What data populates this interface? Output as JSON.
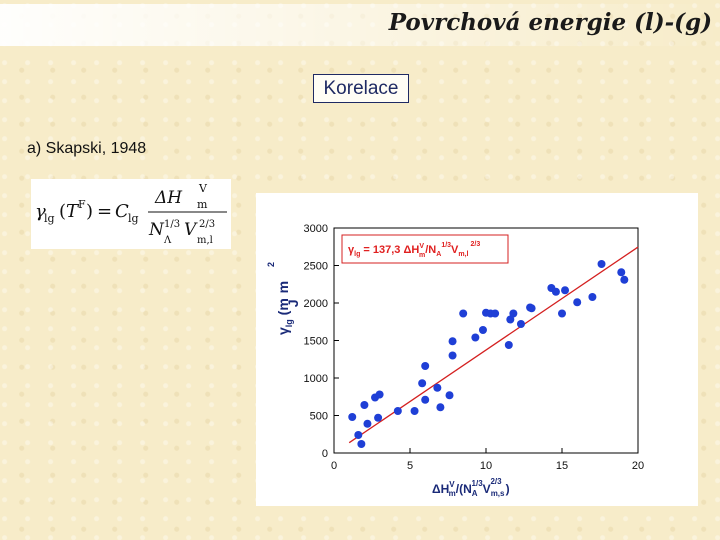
{
  "page": {
    "title": "Povrchová energie (l)-(g)",
    "section_label": "Korelace",
    "subheading": "a) Skapski, 1948"
  },
  "formula": {
    "lhs_symbol": "γ",
    "lhs_sub": "lg",
    "lhs_arg_T": "T",
    "lhs_arg_sup": "F",
    "equals": "=",
    "const": "C",
    "const_sub": "lg",
    "num_delta": "ΔH",
    "num_sub": "m",
    "num_sup": "V",
    "den_N": "N",
    "den_N_sup": "1/3",
    "den_N_sub": "Λ",
    "den_V": "V",
    "den_V_sup": "2/3",
    "den_V_sub": "m,l"
  },
  "chart_data": {
    "type": "scatter",
    "x": [
      1.2,
      1.6,
      1.8,
      2.0,
      2.2,
      2.7,
      2.9,
      3.0,
      4.2,
      5.3,
      5.8,
      6.0,
      6.0,
      6.8,
      7.0,
      7.6,
      7.8,
      7.8,
      8.5,
      9.3,
      9.8,
      10.0,
      10.3,
      10.6,
      11.5,
      11.6,
      11.8,
      12.3,
      12.9,
      13.0,
      14.3,
      14.6,
      15.0,
      15.2,
      16.0,
      17.0,
      17.6,
      18.9,
      19.1
    ],
    "y": [
      480,
      240,
      120,
      640,
      390,
      740,
      470,
      780,
      560,
      560,
      930,
      710,
      1160,
      870,
      610,
      770,
      1300,
      1490,
      1860,
      1540,
      1640,
      1870,
      1860,
      1860,
      1440,
      1780,
      1860,
      1720,
      1940,
      1930,
      2200,
      2150,
      1860,
      2170,
      2010,
      2080,
      2520,
      2410,
      2310
    ],
    "fit_line": {
      "x": [
        1,
        20
      ],
      "y": [
        137.3,
        2746
      ]
    },
    "annotation": {
      "prefix": "γ",
      "prefix_sub": "lg",
      "equation": " = 137,3 ΔH",
      "h_sup": "V",
      "h_sub": "m",
      "n_sep": "/N",
      "n_sub": "A",
      "n_sup": "1/3",
      "v_sym": "V",
      "v_sub": "m,l",
      "v_sup": "2/3"
    },
    "ylabel": {
      "gamma": "γ",
      "gamma_sub": "lg",
      "unit_paren": " (",
      "unit_m": "m",
      "unit_J": "J",
      "unit_m2": "m",
      "exp": "2"
    },
    "xlabel": {
      "delta": "ΔH",
      "h_sup": "V",
      "h_sub": "m",
      "mid": "/(N",
      "n_sub": "A",
      "n_sup": "1/3",
      "v": "V",
      "v_sub": "m,s",
      "v_sup": "2/3",
      "close": ")"
    },
    "xlim": [
      0,
      20
    ],
    "ylim": [
      0,
      3000
    ],
    "xticks": [
      "0",
      "5",
      "10",
      "15",
      "20"
    ],
    "yticks": [
      "0",
      "500",
      "1000",
      "1500",
      "2000",
      "2500",
      "3000"
    ],
    "grid": false,
    "colors": {
      "points": "#1f3fd6",
      "line": "#d42020",
      "annotation_text": "#e02020",
      "annotation_border": "#d42020",
      "axis_label": "#1a2a78"
    }
  }
}
